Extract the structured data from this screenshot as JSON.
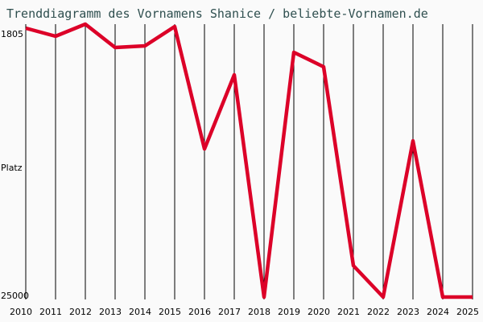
{
  "title": "Trenddiagramm des Vornamens Shanice / beliebte-Vornamen.de",
  "chart_data": {
    "type": "line",
    "title": "Trenddiagramm des Vornamens Shanice / beliebte-Vornamen.de",
    "xlabel": "",
    "ylabel": "Platz",
    "y_inverted": true,
    "ylim": [
      1805,
      25000
    ],
    "yticks": [
      "1805",
      "25000"
    ],
    "grid": "vertical",
    "categories": [
      "2010",
      "2011",
      "2012",
      "2013",
      "2014",
      "2015",
      "2016",
      "2017",
      "2018",
      "2019",
      "2020",
      "2021",
      "2022",
      "2023",
      "2024",
      "2025"
    ],
    "series": [
      {
        "name": "Shanice",
        "color": "#dc0028",
        "values": [
          1305,
          2019,
          949,
          3018,
          2876,
          1163,
          12011,
          5445,
          25000,
          3446,
          4731,
          22360,
          25000,
          11297,
          25000,
          25000
        ]
      }
    ]
  },
  "axis": {
    "y_top_label": "1805",
    "y_mid_label": "Platz",
    "y_bottom_label": "25000"
  },
  "colors": {
    "line": "#dc0028",
    "title": "#2f4f4f",
    "background": "#fafafa",
    "grid": "#000000"
  }
}
